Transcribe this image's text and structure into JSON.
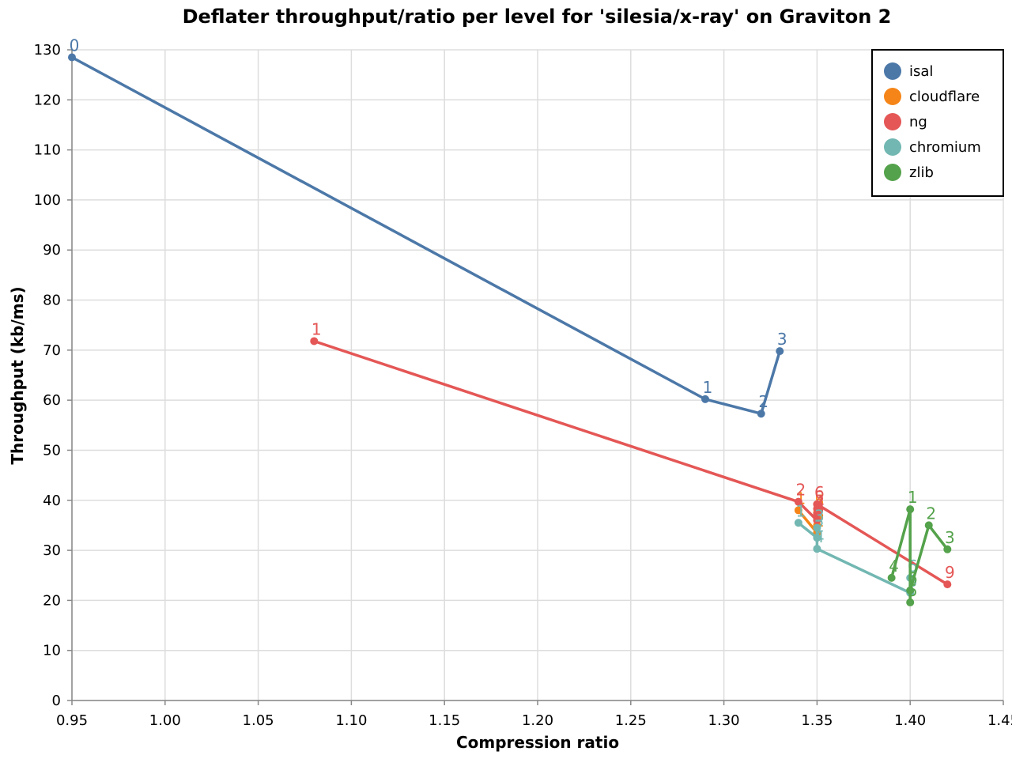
{
  "chart_data": {
    "type": "line",
    "title": "Deflater throughput/ratio per level for 'silesia/x-ray' on Graviton 2",
    "xlabel": "Compression ratio",
    "ylabel": "Throughput (kb/ms)",
    "xlim": [
      0.95,
      1.45
    ],
    "ylim": [
      0,
      130
    ],
    "x_ticks": [
      "0.95",
      "1.00",
      "1.05",
      "1.10",
      "1.15",
      "1.20",
      "1.25",
      "1.30",
      "1.35",
      "1.40",
      "1.45"
    ],
    "y_ticks": [
      "0",
      "10",
      "20",
      "30",
      "40",
      "50",
      "60",
      "70",
      "80",
      "90",
      "100",
      "110",
      "120",
      "130"
    ],
    "grid": true,
    "legend_position": "top-right",
    "series": [
      {
        "name": "isal",
        "color": "#4c78a8",
        "points": [
          {
            "x": 0.95,
            "y": 128.5,
            "label": "0"
          },
          {
            "x": 1.29,
            "y": 60.2,
            "label": "1"
          },
          {
            "x": 1.32,
            "y": 57.3,
            "label": "2"
          },
          {
            "x": 1.33,
            "y": 69.8,
            "label": "3"
          }
        ]
      },
      {
        "name": "cloudflare",
        "color": "#f58518",
        "points": [
          {
            "x": 1.34,
            "y": 38.0,
            "label": "1"
          },
          {
            "x": 1.35,
            "y": 33.5,
            "label": "2"
          },
          {
            "x": 1.35,
            "y": 35.0,
            "label": "3"
          },
          {
            "x": 1.35,
            "y": 36.5,
            "label": "4"
          },
          {
            "x": 1.35,
            "y": 37.5,
            "label": "5"
          }
        ]
      },
      {
        "name": "ng",
        "color": "#e45756",
        "points": [
          {
            "x": 1.08,
            "y": 71.8,
            "label": "1"
          },
          {
            "x": 1.34,
            "y": 39.7,
            "label": "2"
          },
          {
            "x": 1.35,
            "y": 36.0,
            "label": "3"
          },
          {
            "x": 1.35,
            "y": 37.3,
            "label": "4"
          },
          {
            "x": 1.35,
            "y": 38.3,
            "label": "5"
          },
          {
            "x": 1.35,
            "y": 39.2,
            "label": "6"
          },
          {
            "x": 1.42,
            "y": 23.2,
            "label": "9"
          }
        ]
      },
      {
        "name": "chromium",
        "color": "#72b7b2",
        "points": [
          {
            "x": 1.34,
            "y": 35.5,
            "label": "1"
          },
          {
            "x": 1.35,
            "y": 32.5,
            "label": "2"
          },
          {
            "x": 1.35,
            "y": 34.5,
            "label": "3"
          },
          {
            "x": 1.35,
            "y": 30.3,
            "label": "4"
          },
          {
            "x": 1.4,
            "y": 21.5,
            "label": "5"
          },
          {
            "x": 1.4,
            "y": 24.5,
            "label": "6"
          }
        ]
      },
      {
        "name": "zlib",
        "color": "#54a24b",
        "points": [
          {
            "x": 1.39,
            "y": 24.5,
            "label": "4"
          },
          {
            "x": 1.4,
            "y": 38.2,
            "label": "1"
          },
          {
            "x": 1.4,
            "y": 19.6,
            "label": "5"
          },
          {
            "x": 1.4,
            "y": 22.0,
            "label": "6"
          },
          {
            "x": 1.41,
            "y": 35.0,
            "label": "2"
          },
          {
            "x": 1.42,
            "y": 30.2,
            "label": "3"
          }
        ]
      }
    ]
  }
}
